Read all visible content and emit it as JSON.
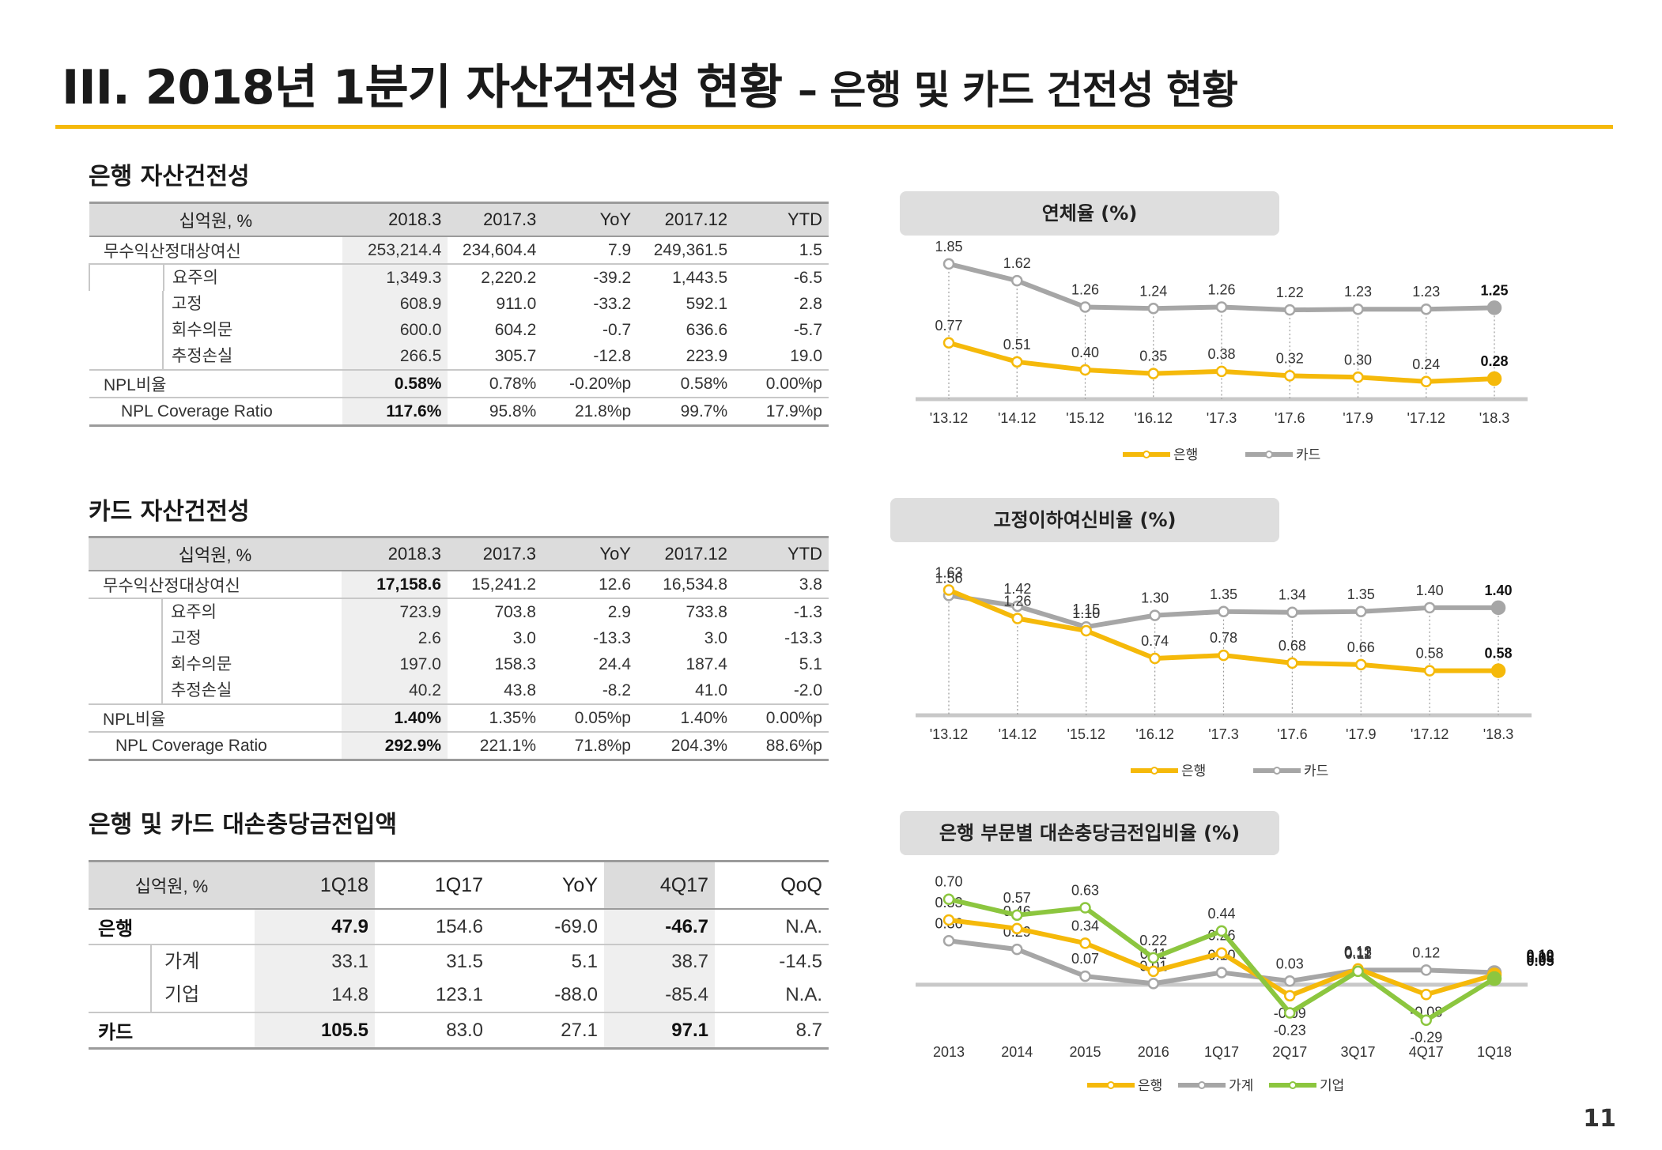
{
  "title": {
    "main": "III. 2018년 1분기 자산건전성 현황",
    "sub": "– 은행 및 카드 건전성 현황"
  },
  "page_number": "11",
  "colors": {
    "bank": "#f5b90a",
    "card": "#a6a6a6",
    "corp": "#8cc63f",
    "accent": "#f5b90a"
  },
  "sections": {
    "bank": "은행 자산건전성",
    "card": "카드 자산건전성",
    "provision": "은행 및 카드 대손충당금전입액"
  },
  "bank_table": {
    "headers": [
      "십억원, %",
      "2018.3",
      "2017.3",
      "YoY",
      "2017.12",
      "YTD"
    ],
    "rows": [
      {
        "label": "무수익산정대상여신",
        "values": [
          "253,214.4",
          "234,604.4",
          "7.9",
          "249,361.5",
          "1.5"
        ]
      },
      {
        "label": "요주의",
        "values": [
          "1,349.3",
          "2,220.2",
          "-39.2",
          "1,443.5",
          "-6.5"
        ]
      },
      {
        "label": "고정",
        "values": [
          "608.9",
          "911.0",
          "-33.2",
          "592.1",
          "2.8"
        ]
      },
      {
        "label": "회수의문",
        "values": [
          "600.0",
          "604.2",
          "-0.7",
          "636.6",
          "-5.7"
        ]
      },
      {
        "label": "추정손실",
        "values": [
          "266.5",
          "305.7",
          "-12.8",
          "223.9",
          "19.0"
        ]
      },
      {
        "label": "NPL비율",
        "values": [
          "0.58%",
          "0.78%",
          "-0.20%p",
          "0.58%",
          "0.00%p"
        ]
      },
      {
        "label": "NPL Coverage Ratio",
        "values": [
          "117.6%",
          "95.8%",
          "21.8%p",
          "99.7%",
          "17.9%p"
        ]
      }
    ]
  },
  "card_table": {
    "headers": [
      "십억원, %",
      "2018.3",
      "2017.3",
      "YoY",
      "2017.12",
      "YTD"
    ],
    "rows": [
      {
        "label": "무수익산정대상여신",
        "values": [
          "17,158.6",
          "15,241.2",
          "12.6",
          "16,534.8",
          "3.8"
        ]
      },
      {
        "label": "요주의",
        "values": [
          "723.9",
          "703.8",
          "2.9",
          "733.8",
          "-1.3"
        ]
      },
      {
        "label": "고정",
        "values": [
          "2.6",
          "3.0",
          "-13.3",
          "3.0",
          "-13.3"
        ]
      },
      {
        "label": "회수의문",
        "values": [
          "197.0",
          "158.3",
          "24.4",
          "187.4",
          "5.1"
        ]
      },
      {
        "label": "추정손실",
        "values": [
          "40.2",
          "43.8",
          "-8.2",
          "41.0",
          "-2.0"
        ]
      },
      {
        "label": "NPL비율",
        "values": [
          "1.40%",
          "1.35%",
          "0.05%p",
          "1.40%",
          "0.00%p"
        ]
      },
      {
        "label": "NPL Coverage Ratio",
        "values": [
          "292.9%",
          "221.1%",
          "71.8%p",
          "204.3%",
          "88.6%p"
        ]
      }
    ]
  },
  "provision_table": {
    "headers": [
      "십억원, %",
      "1Q18",
      "1Q17",
      "YoY",
      "4Q17",
      "QoQ"
    ],
    "rows": [
      {
        "label": "은행",
        "values": [
          "47.9",
          "154.6",
          "-69.0",
          "-46.7",
          "N.A."
        ]
      },
      {
        "label": "가계",
        "values": [
          "33.1",
          "31.5",
          "5.1",
          "38.7",
          "-14.5"
        ]
      },
      {
        "label": "기업",
        "values": [
          "14.8",
          "123.1",
          "-88.0",
          "-85.4",
          "N.A."
        ]
      },
      {
        "label": "카드",
        "values": [
          "105.5",
          "83.0",
          "27.1",
          "97.1",
          "8.7"
        ]
      }
    ]
  },
  "chart_data": [
    {
      "type": "line",
      "title": "연체율 (%)",
      "x": [
        "'13.12",
        "'14.12",
        "'15.12",
        "'16.12",
        "'17.3",
        "'17.6",
        "'17.9",
        "'17.12",
        "'18.3"
      ],
      "series": [
        {
          "name": "은행",
          "values": [
            0.77,
            0.51,
            0.4,
            0.35,
            0.38,
            0.32,
            0.3,
            0.24,
            0.28
          ]
        },
        {
          "name": "카드",
          "values": [
            1.85,
            1.62,
            1.26,
            1.24,
            1.26,
            1.22,
            1.23,
            1.23,
            1.25
          ]
        }
      ],
      "ylim": [
        0,
        2.0
      ],
      "legend": "bottom"
    },
    {
      "type": "line",
      "title": "고정이하여신비율 (%)",
      "x": [
        "'13.12",
        "'14.12",
        "'15.12",
        "'16.12",
        "'17.3",
        "'17.6",
        "'17.9",
        "'17.12",
        "'18.3"
      ],
      "series": [
        {
          "name": "은행",
          "values": [
            1.63,
            1.26,
            1.1,
            0.74,
            0.78,
            0.68,
            0.66,
            0.58,
            0.58
          ]
        },
        {
          "name": "카드",
          "values": [
            1.56,
            1.42,
            1.15,
            1.3,
            1.35,
            1.34,
            1.35,
            1.4,
            1.4
          ]
        }
      ],
      "ylim": [
        0,
        1.8
      ],
      "legend": "bottom"
    },
    {
      "type": "line",
      "title": "은행 부문별 대손충당금전입비율 (%)",
      "x": [
        "2013",
        "2014",
        "2015",
        "2016",
        "1Q17",
        "2Q17",
        "3Q17",
        "4Q17",
        "1Q18"
      ],
      "series": [
        {
          "name": "은행",
          "values": [
            0.53,
            0.46,
            0.34,
            0.11,
            0.26,
            -0.09,
            0.13,
            -0.08,
            0.08
          ]
        },
        {
          "name": "가계",
          "values": [
            0.36,
            0.29,
            0.07,
            0.01,
            0.1,
            0.03,
            0.12,
            0.12,
            0.1
          ]
        },
        {
          "name": "기업",
          "values": [
            0.7,
            0.57,
            0.63,
            0.22,
            0.44,
            -0.23,
            0.11,
            -0.29,
            0.05
          ]
        }
      ],
      "ylim": [
        -0.35,
        0.75
      ],
      "legend": "bottom"
    }
  ]
}
